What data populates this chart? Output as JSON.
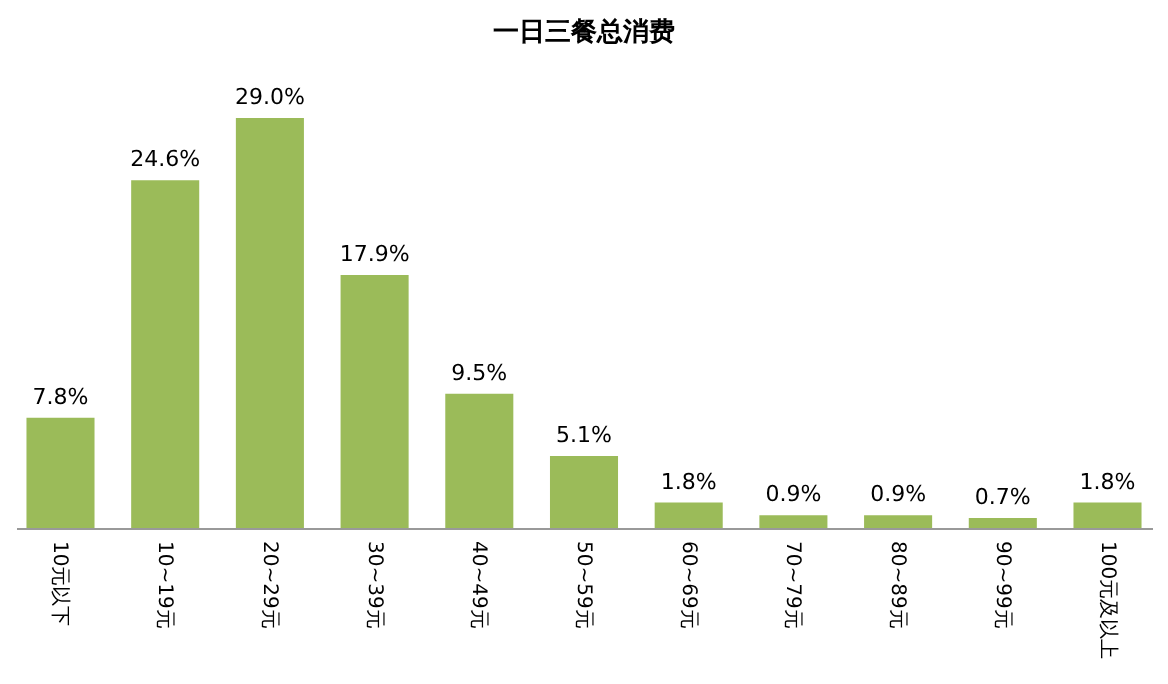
{
  "chart_data": {
    "type": "bar",
    "title": "一日三餐总消费",
    "categories": [
      "10元以下",
      "10~19元",
      "20~29元",
      "30~39元",
      "40~49元",
      "50~59元",
      "60~69元",
      "70~79元",
      "80~89元",
      "90~99元",
      "100元及以上"
    ],
    "values": [
      7.8,
      24.6,
      29.0,
      17.9,
      9.5,
      5.1,
      1.8,
      0.9,
      0.9,
      0.7,
      1.8
    ],
    "value_labels": [
      "7.8%",
      "24.6%",
      "29.0%",
      "17.9%",
      "9.5%",
      "5.1%",
      "1.8%",
      "0.9%",
      "0.9%",
      "0.7%",
      "1.8%"
    ],
    "color": "#9bbb59",
    "grid": false
  }
}
